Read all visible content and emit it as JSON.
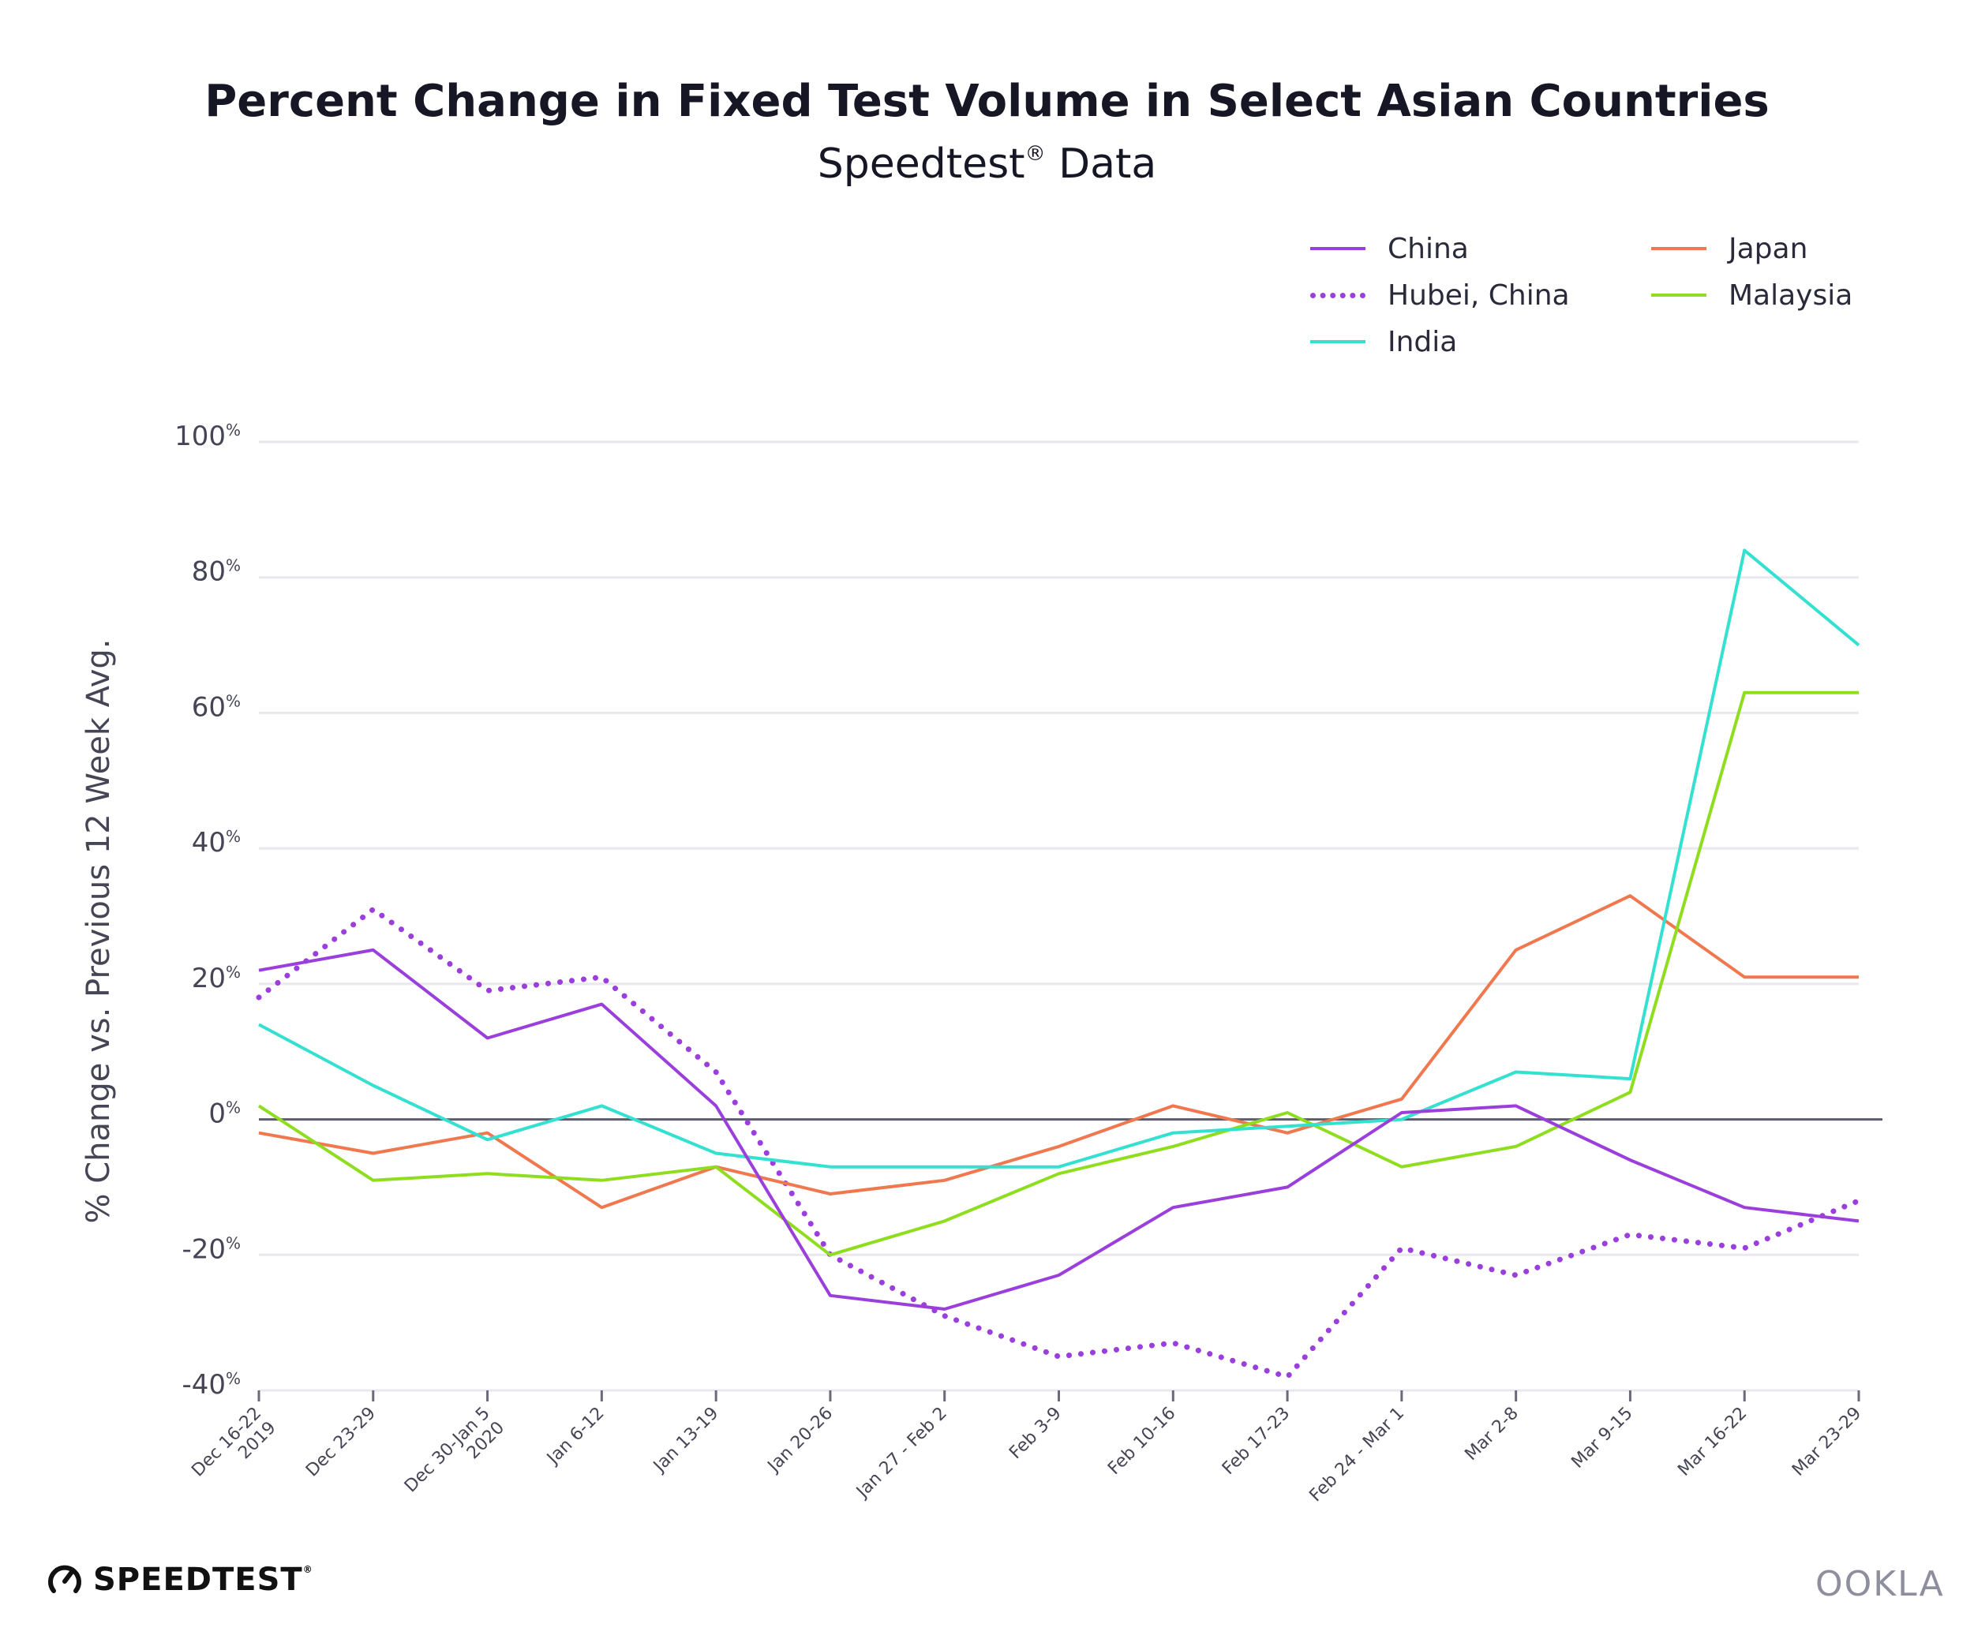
{
  "header": {
    "title": "Percent Change in Fixed Test Volume in Select Asian Countries",
    "subtitle": "Speedtest",
    "subtitle_mark": "®",
    "subtitle_rest": " Data"
  },
  "branding": {
    "speedtest_icon": "speedometer-icon",
    "speedtest_label": "SPEEDTEST",
    "speedtest_mark": "®",
    "ookla_label": "OOKLA"
  },
  "chart_data": {
    "type": "line",
    "ylabel": "% Change vs. Previous 12 Week Avg.",
    "xlabel": "",
    "ylim": [
      -40,
      100
    ],
    "yticks": [
      {
        "value": 100,
        "label": "100%"
      },
      {
        "value": 80,
        "label": "80%"
      },
      {
        "value": 60,
        "label": "60%"
      },
      {
        "value": 40,
        "label": "40%"
      },
      {
        "value": 20,
        "label": "20%"
      },
      {
        "value": 0,
        "label": "0%"
      },
      {
        "value": -20,
        "label": "-20%"
      },
      {
        "value": -40,
        "label": "-40%"
      }
    ],
    "categories": [
      [
        "Dec 16-22",
        "2019"
      ],
      [
        "Dec 23-29"
      ],
      [
        "Dec 30-Jan 5",
        "2020"
      ],
      [
        "Jan 6-12"
      ],
      [
        "Jan 13-19"
      ],
      [
        "Jan 20-26"
      ],
      [
        "Jan 27 - Feb 2"
      ],
      [
        "Feb 3-9"
      ],
      [
        "Feb 10-16"
      ],
      [
        "Feb 17-23"
      ],
      [
        "Feb 24 - Mar 1"
      ],
      [
        "Mar 2-8"
      ],
      [
        "Mar 9-15"
      ],
      [
        "Mar 16-22"
      ],
      [
        "Mar 23-29"
      ]
    ],
    "grid": true,
    "legend_position": "top-right",
    "series": [
      {
        "name": "China",
        "color": "#9b3fdc",
        "style": "solid",
        "values": [
          22,
          25,
          12,
          17,
          2,
          -26,
          -28,
          -23,
          -13,
          -10,
          1,
          2,
          -6,
          -13,
          -15
        ]
      },
      {
        "name": "Hubei, China",
        "color": "#9b3fdc",
        "style": "dotted",
        "values": [
          18,
          31,
          19,
          21,
          7,
          -20,
          -29,
          -35,
          -33,
          -38,
          -19,
          -23,
          -17,
          -19,
          -12
        ]
      },
      {
        "name": "India",
        "color": "#34e0d0",
        "style": "solid",
        "values": [
          14,
          5,
          -3,
          2,
          -5,
          -7,
          -7,
          -7,
          -2,
          -1,
          0,
          7,
          6,
          84,
          70
        ]
      },
      {
        "name": "Japan",
        "color": "#f0784f",
        "style": "solid",
        "values": [
          -2,
          -5,
          -2,
          -13,
          -7,
          -11,
          -9,
          -4,
          2,
          -2,
          3,
          25,
          33,
          21,
          21
        ]
      },
      {
        "name": "Malaysia",
        "color": "#8fdd1f",
        "style": "solid",
        "values": [
          2,
          -9,
          -8,
          -9,
          -7,
          -20,
          -15,
          -8,
          -4,
          1,
          -7,
          -4,
          4,
          63,
          63
        ]
      }
    ]
  }
}
